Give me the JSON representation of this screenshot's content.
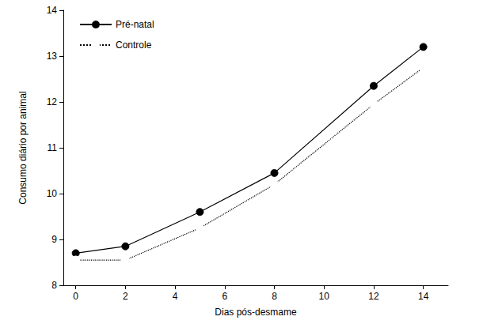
{
  "chart_data": {
    "type": "line",
    "x_label": "Dias pós-desmame",
    "y_label": "Consumo diário por animal",
    "x": [
      0,
      2,
      5,
      8,
      12,
      14
    ],
    "series": [
      {
        "name": "Pré-natal",
        "color": "#000000",
        "marker": "circle",
        "line_style": "solid",
        "values": [
          8.7,
          8.85,
          9.6,
          10.45,
          12.35,
          13.2
        ]
      },
      {
        "name": "Controle",
        "color": "#000000",
        "marker": "open_circle",
        "line_style": "dotted",
        "values": [
          8.55,
          8.55,
          9.25,
          10.2,
          11.95,
          12.75
        ]
      }
    ],
    "xlim": [
      -0.5,
      15
    ],
    "xticks": [
      0,
      2,
      4,
      6,
      8,
      10,
      12,
      14
    ],
    "ylim": [
      8,
      14
    ],
    "yticks": [
      8,
      9,
      10,
      11,
      12,
      13,
      14
    ],
    "grid": false,
    "legend": "upper left"
  }
}
